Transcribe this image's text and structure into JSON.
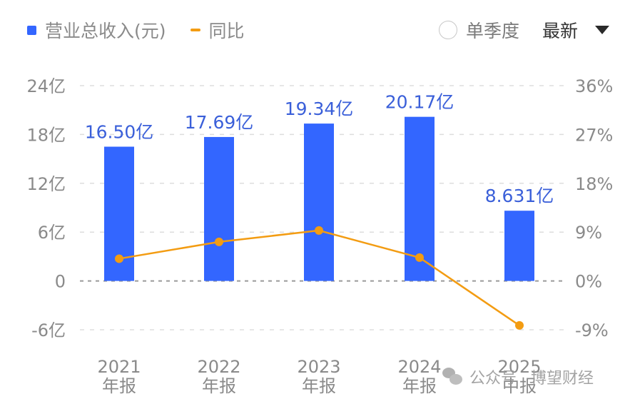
{
  "legend": {
    "bar_label": "营业总收入(元)",
    "line_label": "同比",
    "bar_color": "#3366ff",
    "line_color": "#f39c12"
  },
  "controls": {
    "single_quarter_label": "单季度",
    "single_quarter_checked": false,
    "sort_label": "最新"
  },
  "axes": {
    "left_ticks": [
      "24亿",
      "18亿",
      "12亿",
      "6亿",
      "0",
      "-6亿"
    ],
    "right_ticks": [
      "36%",
      "27%",
      "18%",
      "9%",
      "0%",
      "-9%"
    ],
    "categories": [
      {
        "year": "2021",
        "type": "年报"
      },
      {
        "year": "2022",
        "type": "年报"
      },
      {
        "year": "2023",
        "type": "年报"
      },
      {
        "year": "2024",
        "type": "年报"
      },
      {
        "year": "2025",
        "type": "中报"
      }
    ]
  },
  "bar_labels": [
    "16.50亿",
    "17.69亿",
    "19.34亿",
    "20.17亿",
    "8.631亿"
  ],
  "watermark": {
    "prefix": "公众号",
    "name": "博望财经"
  },
  "chart_data": {
    "type": "bar",
    "title": "",
    "categories": [
      "2021年报",
      "2022年报",
      "2023年报",
      "2024年报",
      "2025中报"
    ],
    "series": [
      {
        "name": "营业总收入(元)",
        "type": "bar",
        "axis": "left",
        "unit": "亿",
        "values": [
          16.5,
          17.69,
          19.34,
          20.17,
          8.631
        ]
      },
      {
        "name": "同比",
        "type": "line",
        "axis": "right",
        "unit": "%",
        "values": [
          4.1,
          7.2,
          9.3,
          4.3,
          -8.2
        ]
      }
    ],
    "xlabel": "",
    "ylabel": "",
    "ylim": [
      -6,
      24
    ],
    "y2lim": [
      -9,
      36
    ],
    "grid": true,
    "legend_position": "top-left"
  }
}
